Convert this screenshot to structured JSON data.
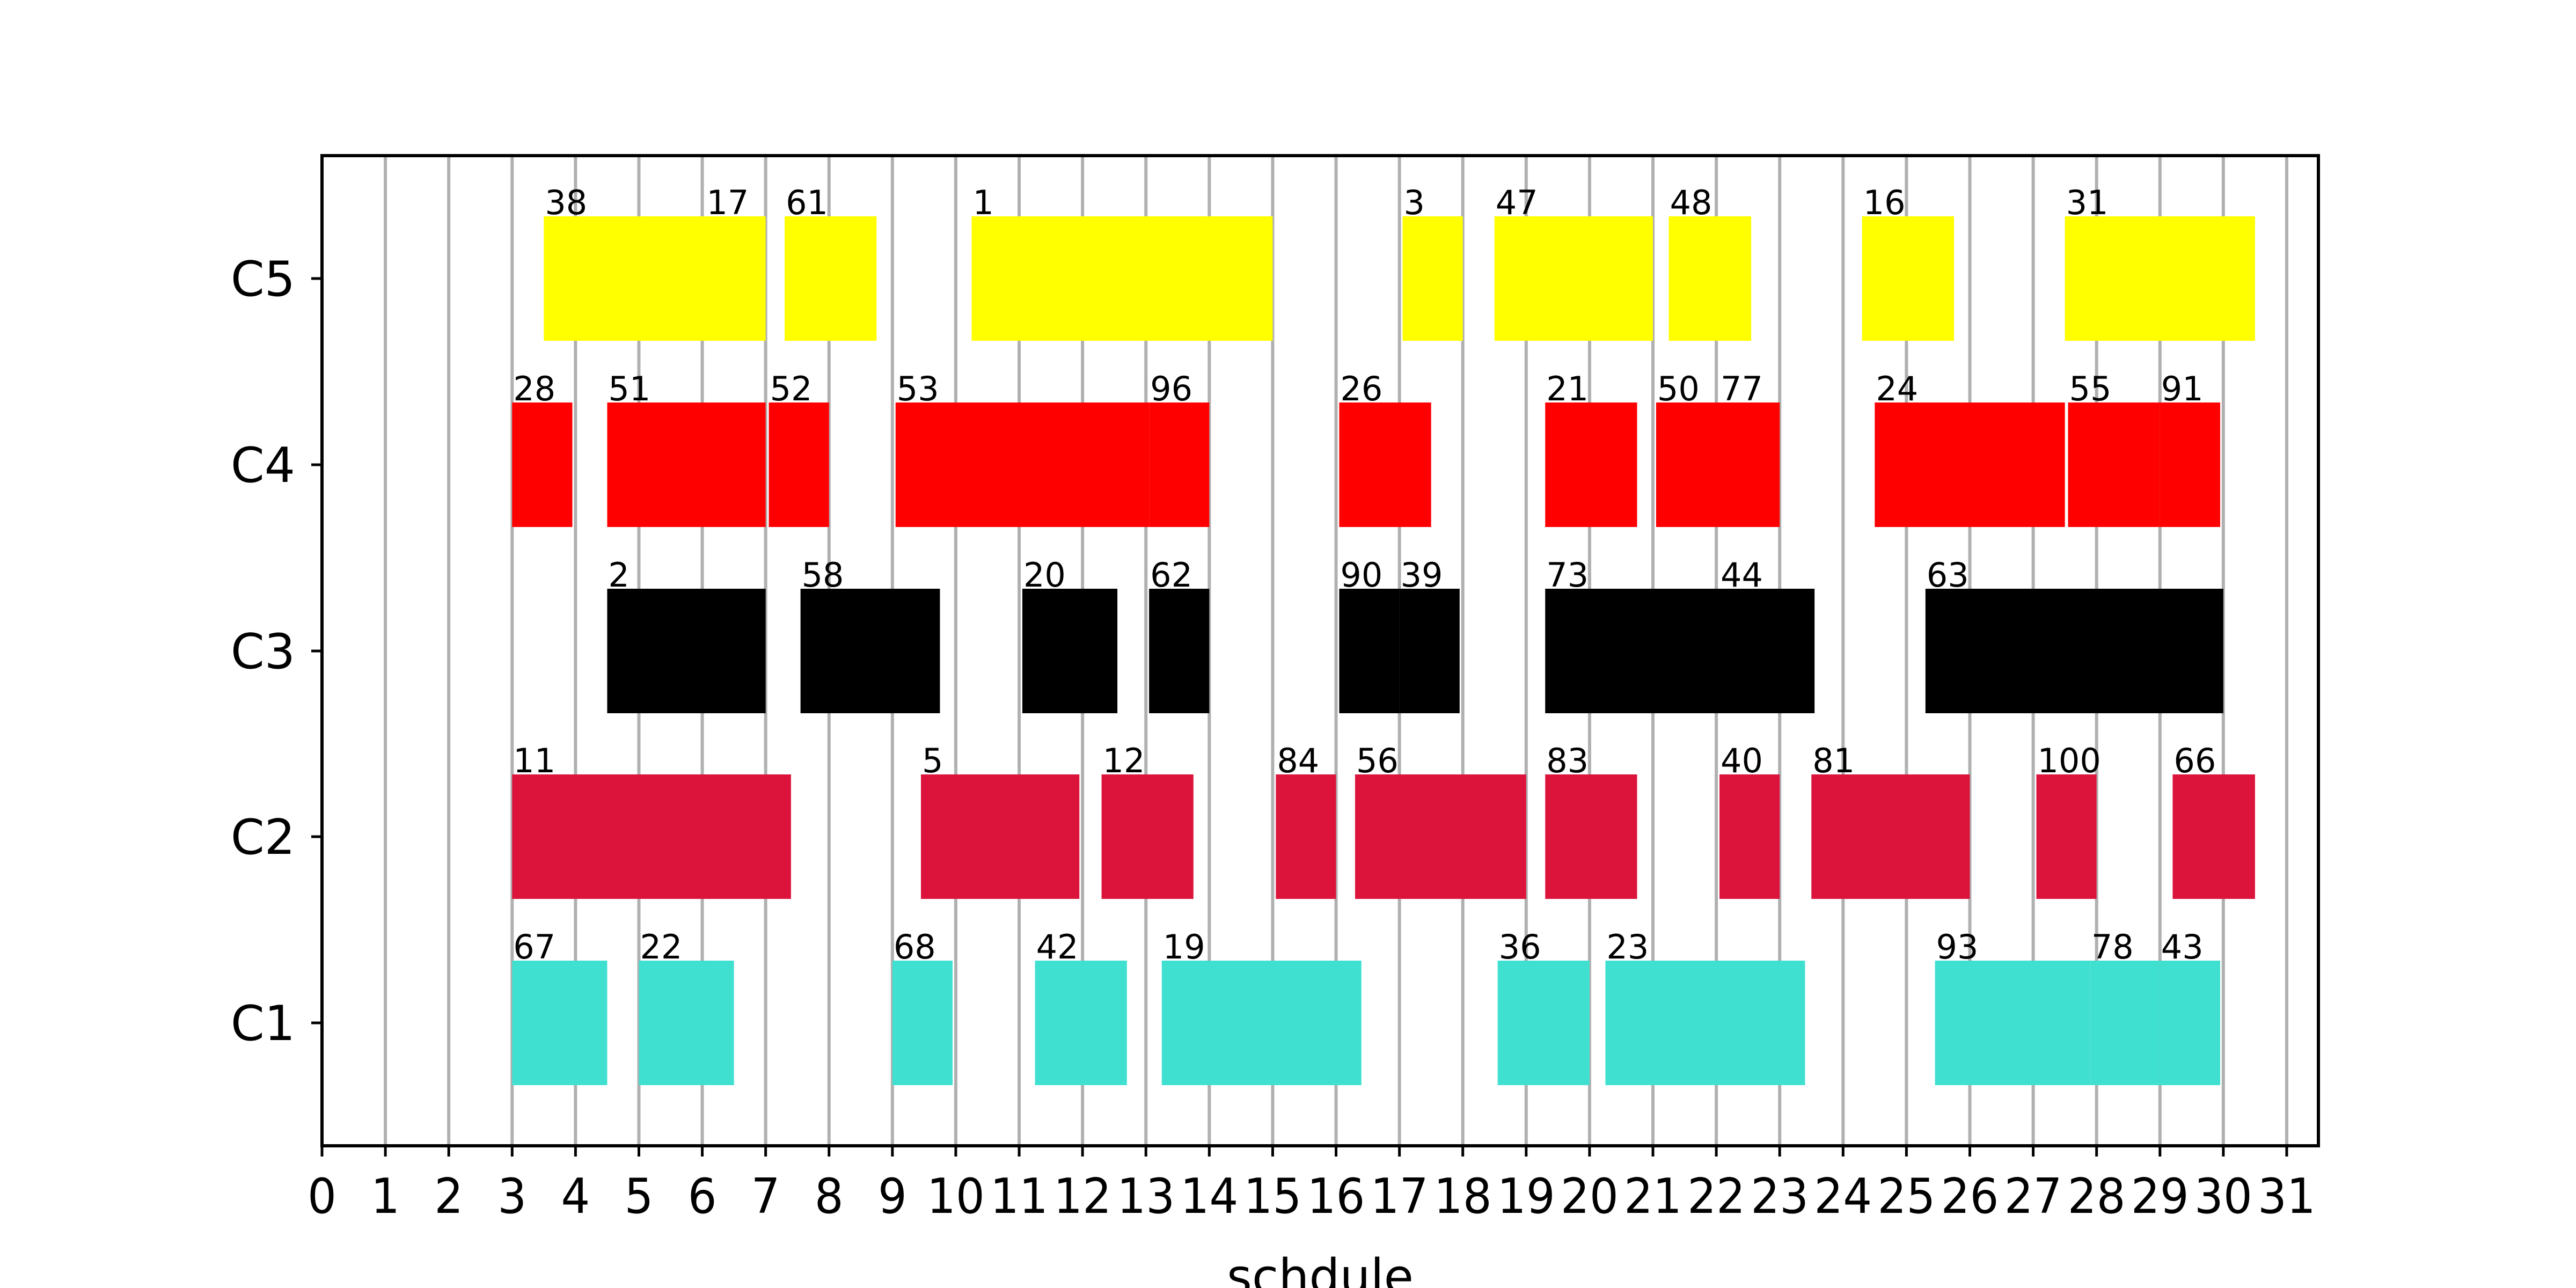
{
  "chart_data": {
    "type": "gantt",
    "title": "",
    "xlabel": "schdule",
    "ylabel": "",
    "xlim": [
      0,
      31.5
    ],
    "x_ticks": [
      "0",
      "1",
      "2",
      "3",
      "4",
      "5",
      "6",
      "7",
      "8",
      "9",
      "10",
      "11",
      "12",
      "13",
      "14",
      "15",
      "16",
      "17",
      "18",
      "19",
      "20",
      "21",
      "22",
      "23",
      "24",
      "25",
      "26",
      "27",
      "28",
      "29",
      "30",
      "31"
    ],
    "grid": "vertical",
    "categories": [
      "C1",
      "C2",
      "C3",
      "C4",
      "C5"
    ],
    "series": [
      {
        "machine": "C1",
        "color": "#40E0D0",
        "tasks": [
          {
            "label": "67",
            "start": 3.0,
            "end": 4.5
          },
          {
            "label": "22",
            "start": 5.0,
            "end": 6.5
          },
          {
            "label": "68",
            "start": 9.0,
            "end": 9.95
          },
          {
            "label": "42",
            "start": 11.25,
            "end": 12.7
          },
          {
            "label": "19",
            "start": 13.25,
            "end": 16.4
          },
          {
            "label": "36",
            "start": 18.55,
            "end": 20.0
          },
          {
            "label": "23",
            "start": 20.25,
            "end": 23.4
          },
          {
            "label": "93",
            "start": 25.45,
            "end": 27.9
          },
          {
            "label": "78",
            "start": 27.9,
            "end": 29.0
          },
          {
            "label": "43",
            "start": 29.0,
            "end": 29.95
          }
        ]
      },
      {
        "machine": "C2",
        "color": "#DC143C",
        "tasks": [
          {
            "label": "11",
            "start": 3.0,
            "end": 7.4
          },
          {
            "label": "5",
            "start": 9.45,
            "end": 11.95
          },
          {
            "label": "12",
            "start": 12.3,
            "end": 13.75
          },
          {
            "label": "84",
            "start": 15.05,
            "end": 16.0
          },
          {
            "label": "56",
            "start": 16.3,
            "end": 19.0
          },
          {
            "label": "83",
            "start": 19.3,
            "end": 20.75
          },
          {
            "label": "40",
            "start": 22.05,
            "end": 23.0
          },
          {
            "label": "81",
            "start": 23.5,
            "end": 26.0
          },
          {
            "label": "100",
            "start": 27.05,
            "end": 28.0
          },
          {
            "label": "66",
            "start": 29.2,
            "end": 30.5
          }
        ]
      },
      {
        "machine": "C3",
        "color": "#000000",
        "tasks": [
          {
            "label": "2",
            "start": 4.5,
            "end": 7.0
          },
          {
            "label": "58",
            "start": 7.55,
            "end": 9.75
          },
          {
            "label": "20",
            "start": 11.05,
            "end": 12.55
          },
          {
            "label": "62",
            "start": 13.05,
            "end": 14.0
          },
          {
            "label": "90",
            "start": 16.05,
            "end": 17.0
          },
          {
            "label": "39",
            "start": 17.0,
            "end": 17.95
          },
          {
            "label": "73",
            "start": 19.3,
            "end": 22.05
          },
          {
            "label": "44",
            "start": 22.05,
            "end": 23.55
          },
          {
            "label": "63",
            "start": 25.3,
            "end": 30.0
          }
        ]
      },
      {
        "machine": "C4",
        "color": "#FF0000",
        "tasks": [
          {
            "label": "28",
            "start": 3.0,
            "end": 3.95
          },
          {
            "label": "51",
            "start": 4.5,
            "end": 7.0
          },
          {
            "label": "52",
            "start": 7.05,
            "end": 8.0
          },
          {
            "label": "53",
            "start": 9.05,
            "end": 13.05
          },
          {
            "label": "96",
            "start": 13.05,
            "end": 14.0
          },
          {
            "label": "26",
            "start": 16.05,
            "end": 17.5
          },
          {
            "label": "21",
            "start": 19.3,
            "end": 20.75
          },
          {
            "label": "50",
            "start": 21.05,
            "end": 22.05
          },
          {
            "label": "77",
            "start": 22.05,
            "end": 23.0
          },
          {
            "label": "24",
            "start": 24.5,
            "end": 27.5
          },
          {
            "label": "55",
            "start": 27.55,
            "end": 29.0
          },
          {
            "label": "91",
            "start": 29.0,
            "end": 29.95
          }
        ]
      },
      {
        "machine": "C5",
        "color": "#FFFF00",
        "tasks": [
          {
            "label": "38",
            "start": 3.5,
            "end": 6.05
          },
          {
            "label": "17",
            "start": 6.05,
            "end": 7.0
          },
          {
            "label": "61",
            "start": 7.3,
            "end": 8.75
          },
          {
            "label": "1",
            "start": 10.25,
            "end": 15.0
          },
          {
            "label": "3",
            "start": 17.05,
            "end": 18.0
          },
          {
            "label": "47",
            "start": 18.5,
            "end": 21.0
          },
          {
            "label": "48",
            "start": 21.25,
            "end": 22.55
          },
          {
            "label": "16",
            "start": 24.3,
            "end": 25.75
          },
          {
            "label": "31",
            "start": 27.5,
            "end": 30.5
          }
        ]
      }
    ]
  }
}
